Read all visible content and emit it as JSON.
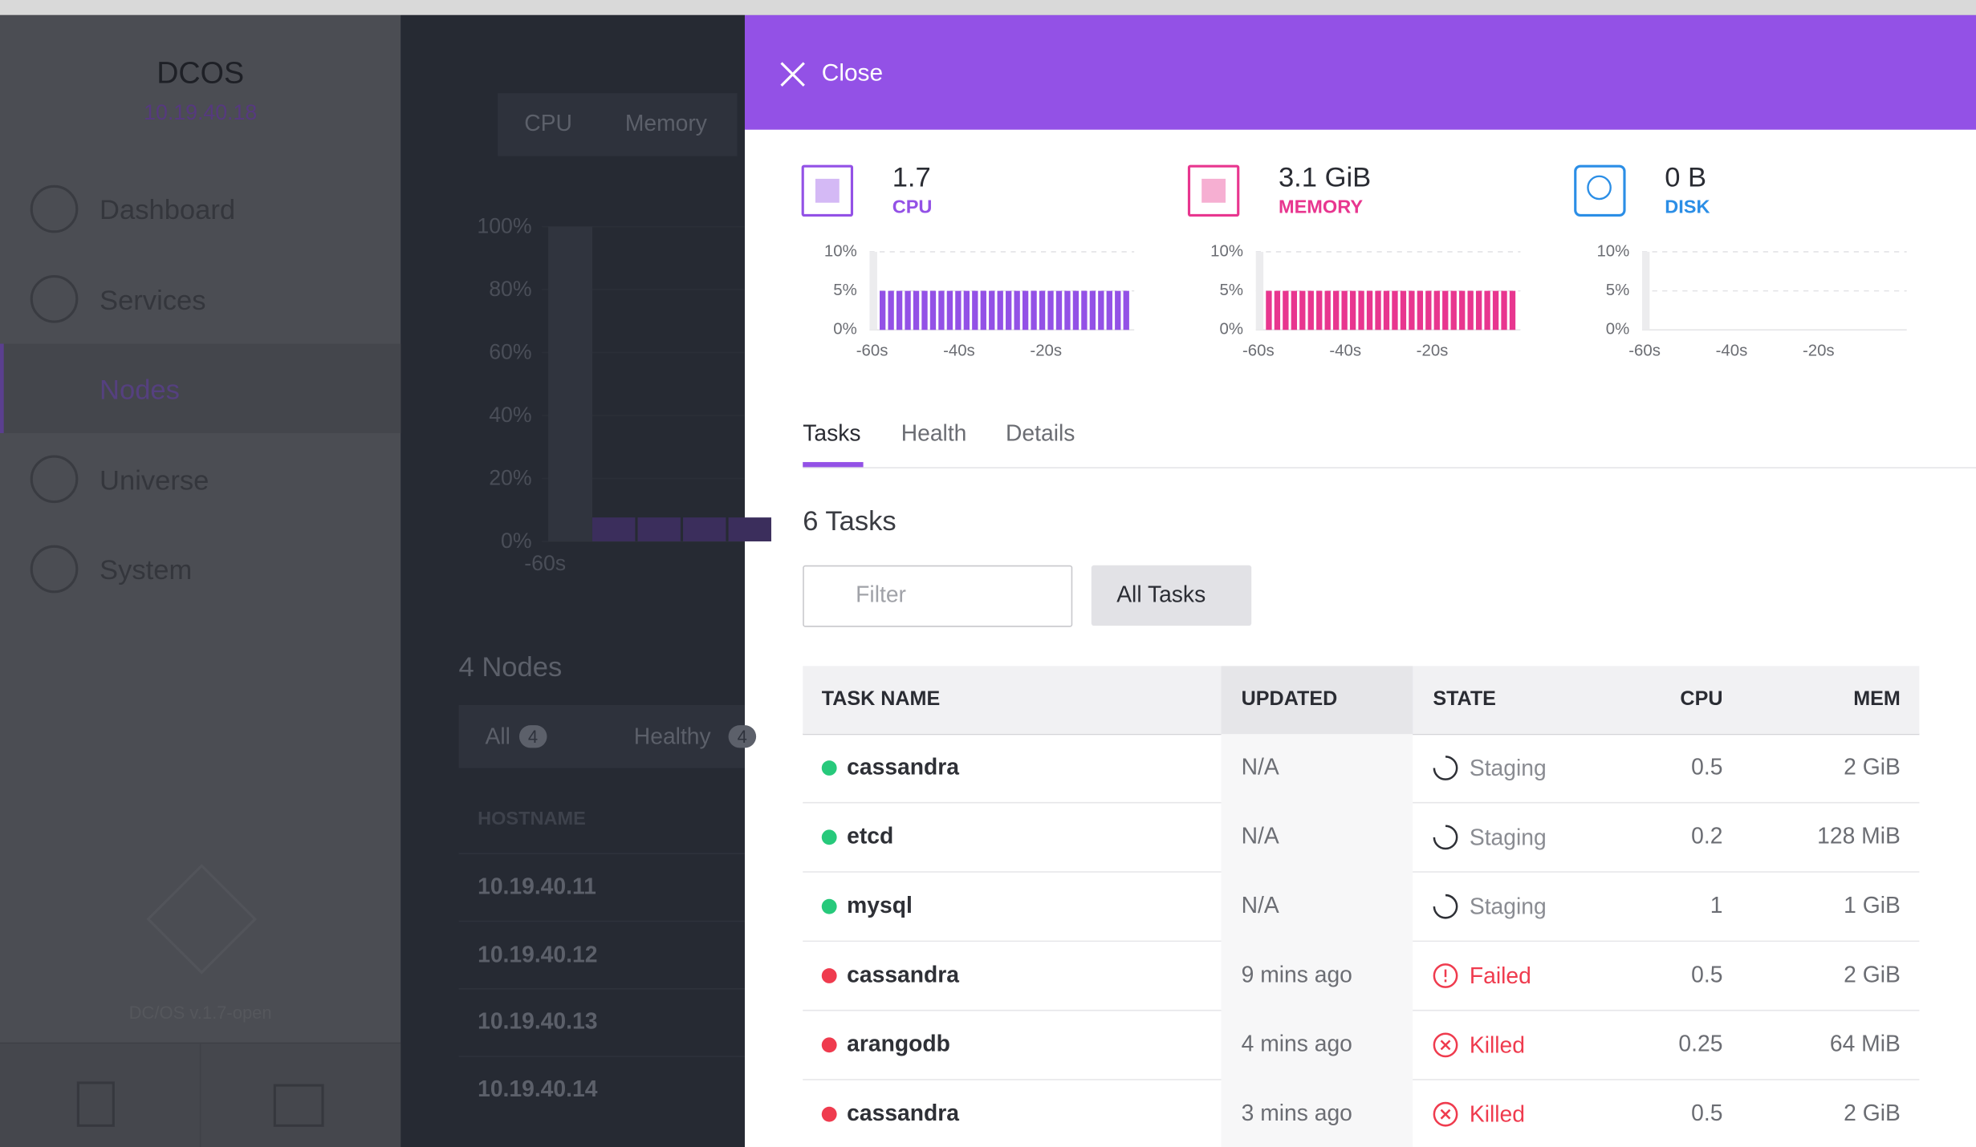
{
  "sidebar": {
    "title": "DCOS",
    "address": "10.19.40.18",
    "nav": [
      "Dashboard",
      "Services",
      "Nodes",
      "Universe",
      "System"
    ],
    "active": 2,
    "version": "DC/OS v.1.7-open"
  },
  "background": {
    "tabs": [
      "CPU",
      "Memory"
    ],
    "yticks": [
      {
        "value": 100,
        "label": "100%"
      },
      {
        "value": 80,
        "label": "80%"
      },
      {
        "value": 60,
        "label": "60%"
      },
      {
        "value": 40,
        "label": "40%"
      },
      {
        "value": 20,
        "label": "20%"
      },
      {
        "value": 0,
        "label": "0%"
      }
    ],
    "xtick": "-60s",
    "title": "4 Nodes",
    "filters": [
      {
        "label": "All",
        "count": 4
      },
      {
        "label": "Healthy",
        "count": 4
      }
    ],
    "column": "HOSTNAME",
    "hosts": [
      "10.19.40.11",
      "10.19.40.12",
      "10.19.40.13",
      "10.19.40.14"
    ]
  },
  "panel": {
    "close": "Close",
    "resources": [
      {
        "value": "1.7",
        "label": "CPU",
        "color": "#9351e6",
        "ylim": [
          0,
          10
        ],
        "yticks": [
          {
            "value": 10,
            "label": "10%"
          },
          {
            "value": 5,
            "label": "5%"
          },
          {
            "value": 0,
            "label": "0%"
          }
        ],
        "xticks": [
          "-60s",
          "-40s",
          "-20s"
        ],
        "values": [
          5,
          5,
          5,
          5,
          5,
          5,
          5,
          5,
          5,
          5,
          5,
          5,
          5,
          5,
          5,
          5,
          5,
          5,
          5,
          5,
          5,
          5,
          5,
          5,
          5,
          5,
          5,
          5,
          5,
          5
        ]
      },
      {
        "value": "3.1 GiB",
        "label": "MEMORY",
        "color": "#e8368f",
        "ylim": [
          0,
          10
        ],
        "yticks": [
          {
            "value": 10,
            "label": "10%"
          },
          {
            "value": 5,
            "label": "5%"
          },
          {
            "value": 0,
            "label": "0%"
          }
        ],
        "xticks": [
          "-60s",
          "-40s",
          "-20s"
        ],
        "values": [
          5,
          5,
          5,
          5,
          5,
          5,
          5,
          5,
          5,
          5,
          5,
          5,
          5,
          5,
          5,
          5,
          5,
          5,
          5,
          5,
          5,
          5,
          5,
          5,
          5,
          5,
          5,
          5,
          5,
          5
        ]
      },
      {
        "value": "0 B",
        "label": "DISK",
        "color": "#2b8ee6",
        "ylim": [
          0,
          10
        ],
        "yticks": [
          {
            "value": 10,
            "label": "10%"
          },
          {
            "value": 5,
            "label": "5%"
          },
          {
            "value": 0,
            "label": "0%"
          }
        ],
        "xticks": [
          "-60s",
          "-40s",
          "-20s"
        ],
        "values": []
      }
    ],
    "tabs": [
      "Tasks",
      "Health",
      "Details"
    ],
    "active_tab": 0,
    "title": "6 Tasks",
    "filter_placeholder": "Filter",
    "dropdown": "All Tasks",
    "columns": [
      "TASK NAME",
      "UPDATED",
      "STATE",
      "CPU",
      "MEM"
    ],
    "sort_column": 1,
    "rows": [
      {
        "name": "cassandra",
        "updated": "N/A",
        "state": "Staging",
        "cpu": 0.5,
        "mem": "2 GiB"
      },
      {
        "name": "etcd",
        "updated": "N/A",
        "state": "Staging",
        "cpu": 0.2,
        "mem": "128 MiB"
      },
      {
        "name": "mysql",
        "updated": "N/A",
        "state": "Staging",
        "cpu": 1,
        "mem": "1 GiB"
      },
      {
        "name": "cassandra",
        "updated": "9 mins ago",
        "state": "Failed",
        "cpu": 0.5,
        "mem": "2 GiB"
      },
      {
        "name": "arangodb",
        "updated": "4 mins ago",
        "state": "Killed",
        "cpu": 0.25,
        "mem": "64 MiB"
      },
      {
        "name": "cassandra",
        "updated": "3 mins ago",
        "state": "Killed",
        "cpu": 0.5,
        "mem": "2 GiB"
      }
    ]
  }
}
